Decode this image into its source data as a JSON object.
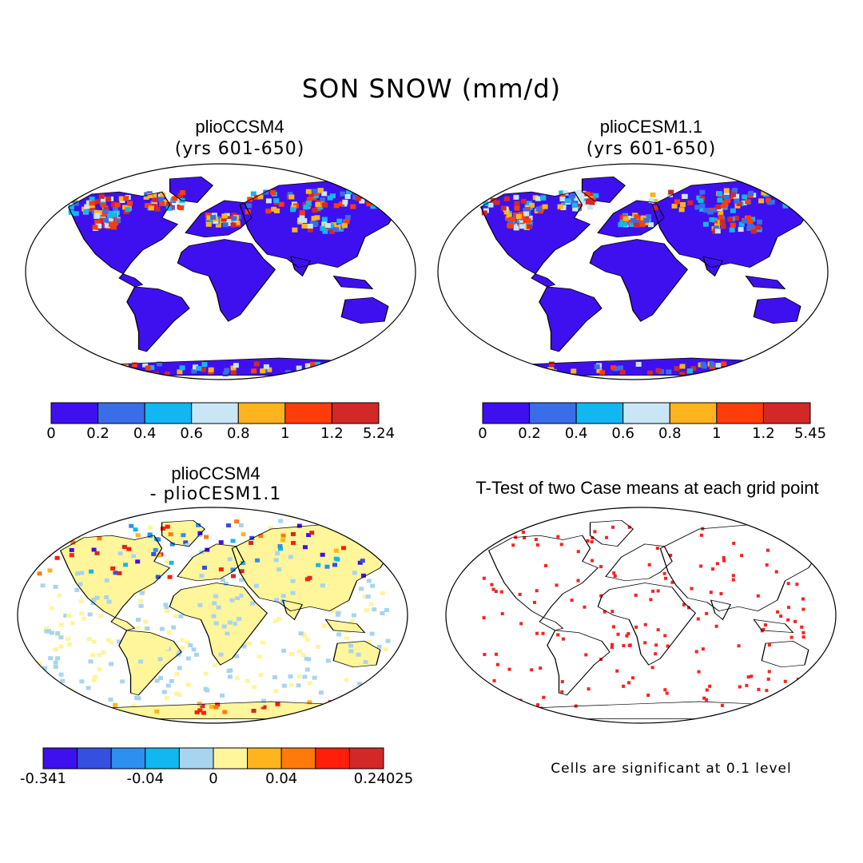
{
  "title": "SON SNOW (mm/d)",
  "panels": {
    "p1": {
      "title": "plioCCSM4",
      "subtitle": "(yrs 601-650)"
    },
    "p2": {
      "title": "plioCESM1.1",
      "subtitle": "(yrs 601-650)"
    },
    "p3": {
      "title": "plioCCSM4",
      "subtitle": "- plioCESM1.1"
    },
    "p4": {
      "title": "T-Test of two Case means at each grid point",
      "note": "Cells are significant at 0.1 level"
    }
  },
  "colorbars": {
    "cb1": {
      "colors": [
        "#3e10f0",
        "#3a6de8",
        "#12b6f0",
        "#c8e6f6",
        "#ffb41e",
        "#ff3c0a",
        "#d22828"
      ],
      "ticks": [
        "0",
        "0.2",
        "0.4",
        "0.6",
        "0.8",
        "1",
        "1.2",
        "5.24"
      ]
    },
    "cb2": {
      "colors": [
        "#3e10f0",
        "#3a6de8",
        "#12b6f0",
        "#c8e6f6",
        "#ffb41e",
        "#ff3c0a",
        "#d22828"
      ],
      "ticks": [
        "0",
        "0.2",
        "0.4",
        "0.6",
        "0.8",
        "1",
        "1.2",
        "5.45"
      ]
    },
    "cb3": {
      "colors": [
        "#3e10f0",
        "#3550e0",
        "#2d8ff0",
        "#12b6f0",
        "#a8d4f0",
        "#fff59a",
        "#ffb41e",
        "#ff7a0a",
        "#ff1e0a",
        "#d22828"
      ],
      "ticks": [
        "-0.341",
        "-0.04",
        "0",
        "0.04",
        "0.24025"
      ]
    }
  },
  "colors": {
    "land": "#3e10f0",
    "diff_land": "#fff59a",
    "signif": "#ff1e1e"
  }
}
